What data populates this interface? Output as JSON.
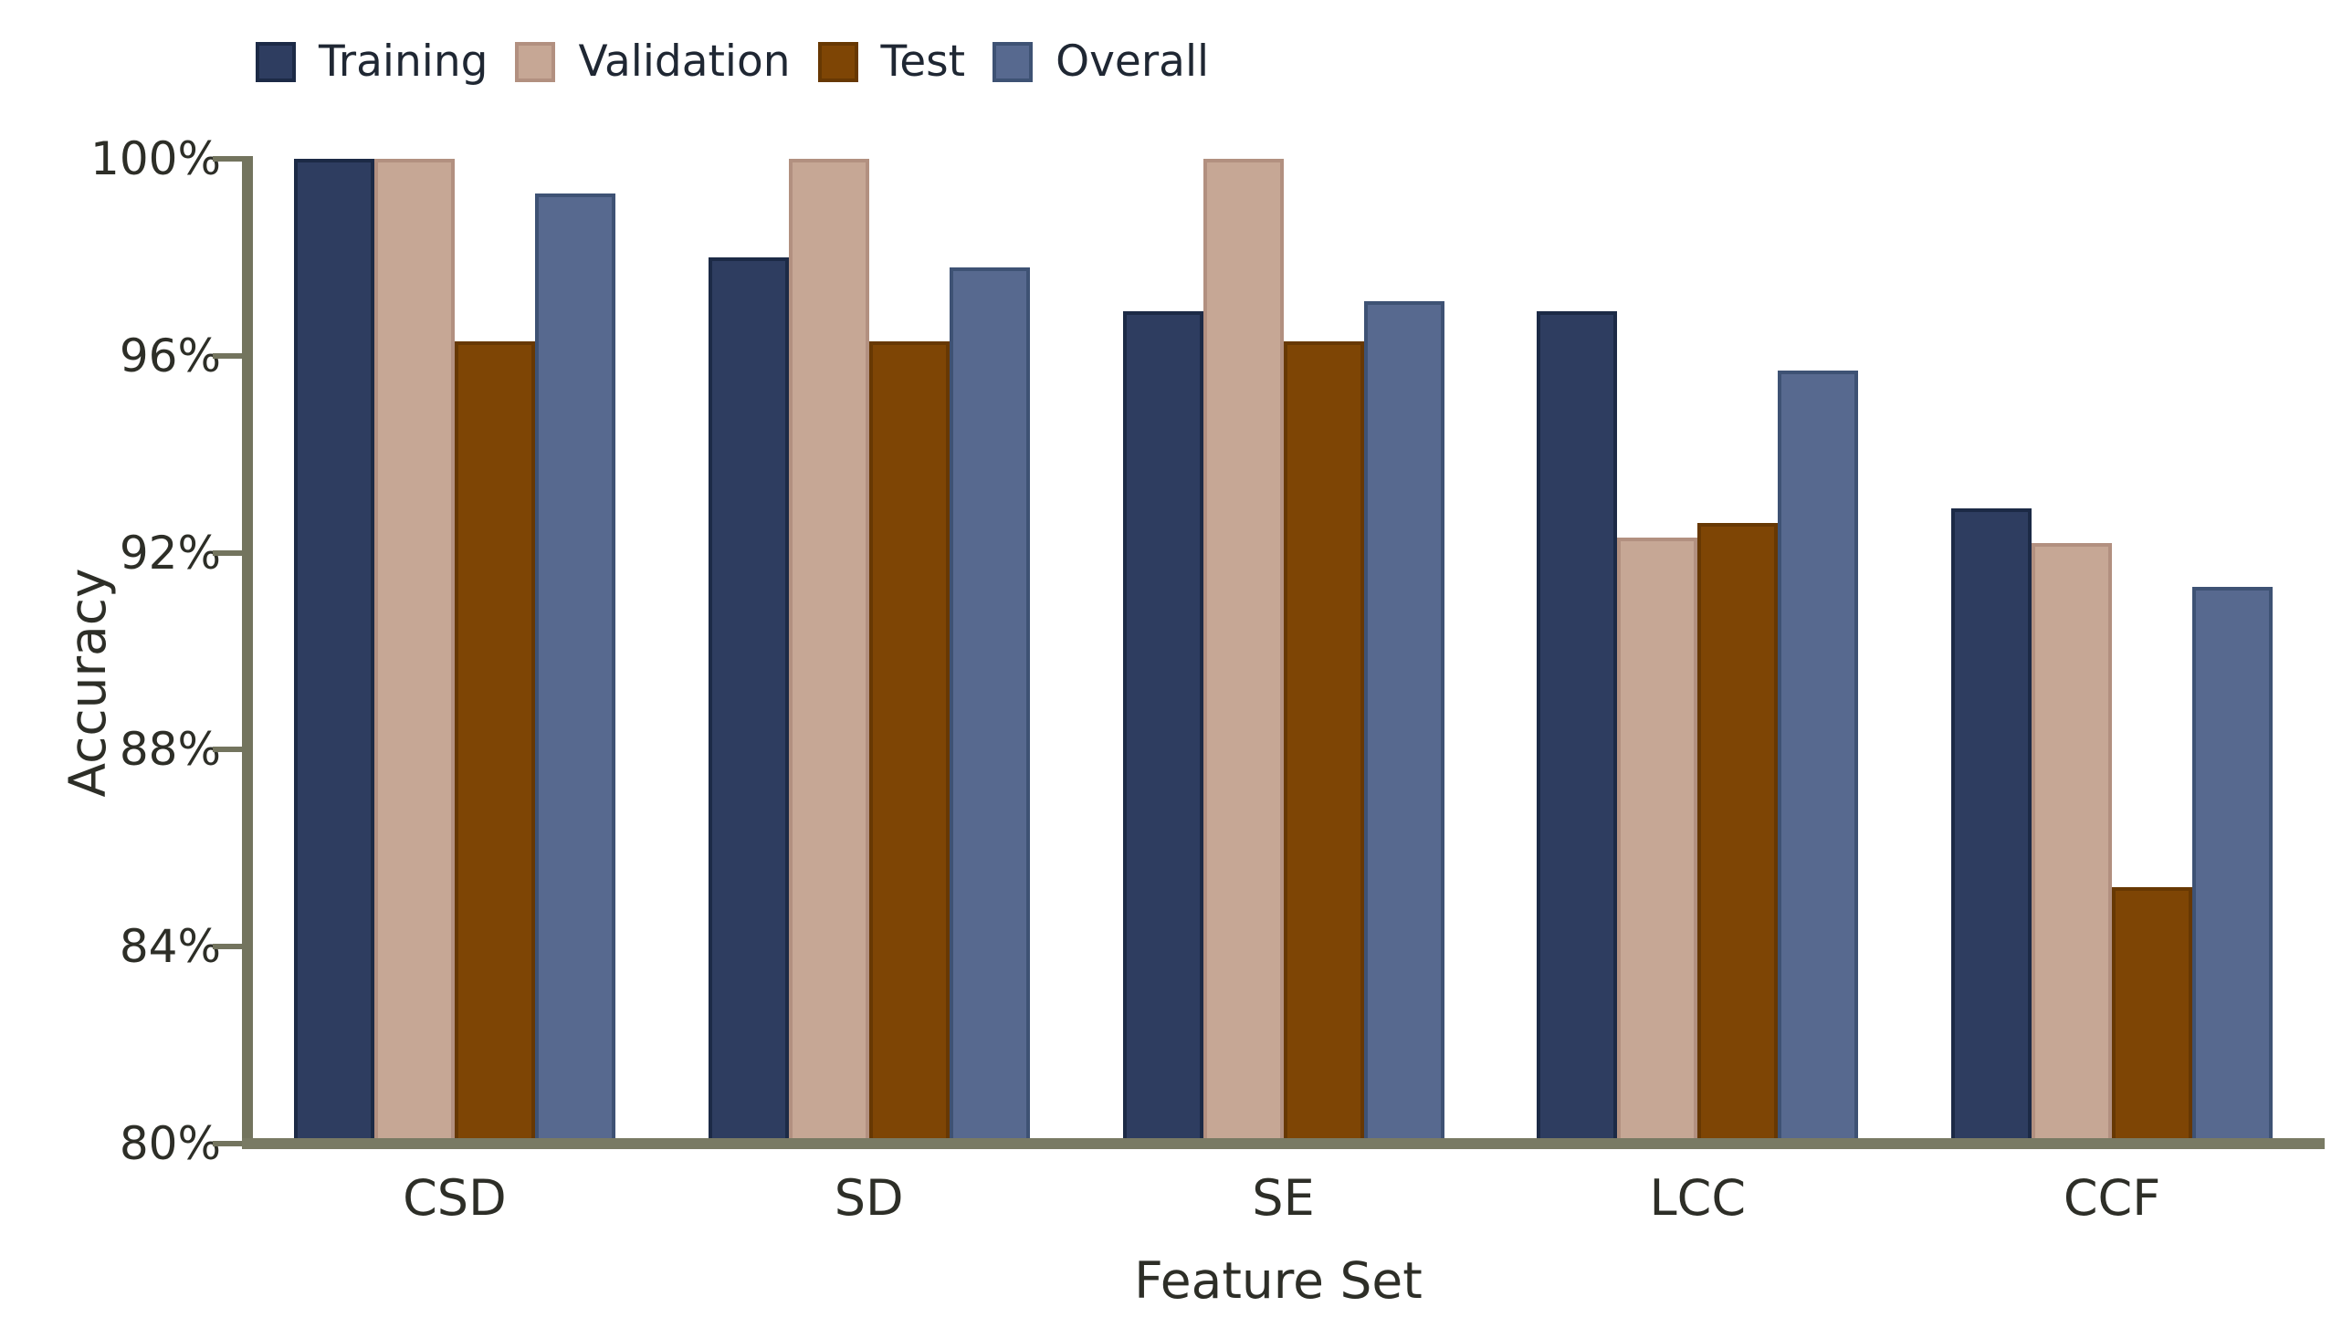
{
  "chart_data": {
    "type": "bar",
    "title": "",
    "categories": [
      "CSD",
      "SD",
      "SE",
      "LCC",
      "CCF"
    ],
    "series": [
      {
        "name": "Training",
        "color": "#2e3d60",
        "border_color": "#1c2a46",
        "values": [
          100.0,
          98.0,
          96.9,
          96.9,
          92.9
        ]
      },
      {
        "name": "Validation",
        "color": "#c6a795",
        "border_color": "#b29080",
        "values": [
          100.0,
          100.0,
          100.0,
          92.3,
          92.2
        ]
      },
      {
        "name": "Test",
        "color": "#7e4505",
        "border_color": "#673803",
        "values": [
          96.3,
          96.3,
          96.3,
          92.6,
          85.2
        ]
      },
      {
        "name": "Overall",
        "color": "#57698f",
        "border_color": "#3e5274",
        "values": [
          99.3,
          97.8,
          97.1,
          95.7,
          91.3
        ]
      }
    ],
    "xlabel": "Feature Set",
    "ylabel": "Accuracy",
    "ylim": [
      80,
      100
    ],
    "y_ticks": [
      "100%",
      "96%",
      "92%",
      "88%",
      "84%",
      "80%"
    ],
    "y_tick_values": [
      100,
      96,
      92,
      88,
      84,
      80
    ],
    "legend_position": "top-left",
    "grid": false,
    "axis_color": "#73745e",
    "background_color": "#ffffff"
  }
}
